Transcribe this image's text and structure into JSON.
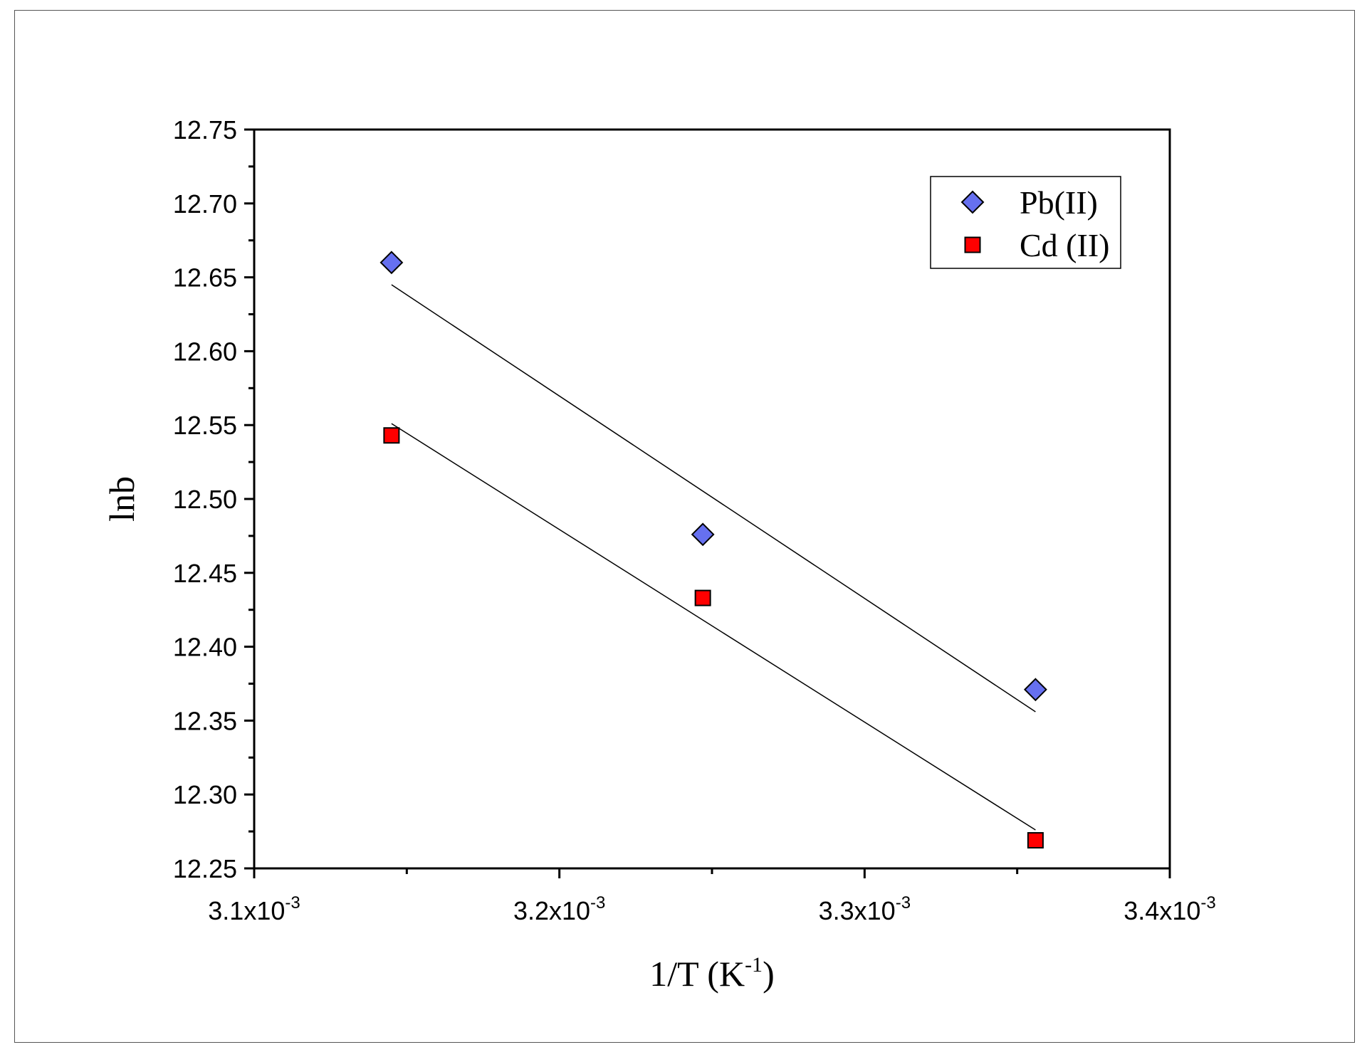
{
  "chart_data": {
    "type": "scatter",
    "xlabel": {
      "base": "1/T (K",
      "sup": "-1",
      "close": ")"
    },
    "ylabel": "lnb",
    "xlim": [
      0.0031,
      0.0034
    ],
    "ylim": [
      12.25,
      12.75
    ],
    "xticks": [
      {
        "value": 0.0031,
        "mantissa": "3.1x10",
        "exp": "-3"
      },
      {
        "value": 0.0032,
        "mantissa": "3.2x10",
        "exp": "-3"
      },
      {
        "value": 0.0033,
        "mantissa": "3.3x10",
        "exp": "-3"
      },
      {
        "value": 0.0034,
        "mantissa": "3.4x10",
        "exp": "-3"
      }
    ],
    "yticks": [
      {
        "value": 12.25,
        "label": "12.25"
      },
      {
        "value": 12.3,
        "label": "12.30"
      },
      {
        "value": 12.35,
        "label": "12.35"
      },
      {
        "value": 12.4,
        "label": "12.40"
      },
      {
        "value": 12.45,
        "label": "12.45"
      },
      {
        "value": 12.5,
        "label": "12.50"
      },
      {
        "value": 12.55,
        "label": "12.55"
      },
      {
        "value": 12.6,
        "label": "12.60"
      },
      {
        "value": 12.65,
        "label": "12.65"
      },
      {
        "value": 12.7,
        "label": "12.70"
      },
      {
        "value": 12.75,
        "label": "12.75"
      }
    ],
    "legend": "top-right",
    "grid": false,
    "series": [
      {
        "name": "Pb(II)",
        "marker": "diamond",
        "color": "#6670f0",
        "points": [
          {
            "x": 0.003145,
            "y": 12.66
          },
          {
            "x": 0.003247,
            "y": 12.476
          },
          {
            "x": 0.003356,
            "y": 12.371
          }
        ],
        "fit": {
          "x1": 0.003145,
          "y1": 12.645,
          "x2": 0.003356,
          "y2": 12.356
        }
      },
      {
        "name": "Cd (II)",
        "marker": "square",
        "color": "#ff0000",
        "points": [
          {
            "x": 0.003145,
            "y": 12.543
          },
          {
            "x": 0.003247,
            "y": 12.433
          },
          {
            "x": 0.003356,
            "y": 12.269
          }
        ],
        "fit": {
          "x1": 0.003145,
          "y1": 12.551,
          "x2": 0.003356,
          "y2": 12.276
        }
      }
    ]
  }
}
